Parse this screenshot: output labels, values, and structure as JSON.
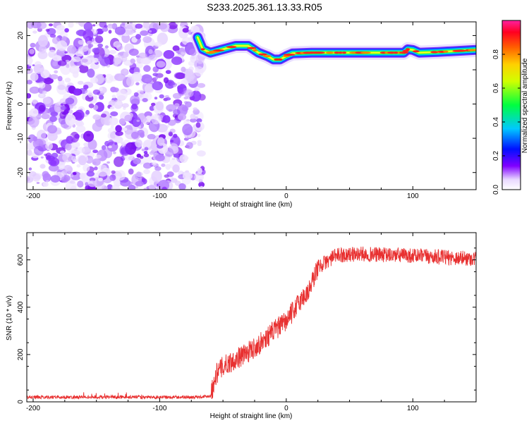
{
  "title": "S233.2025.361.13.33.R05",
  "chart_data": [
    {
      "type": "heatmap",
      "xlabel": "Height of straight line (km)",
      "ylabel": "Frequency (Hz)",
      "xlim": [
        -205,
        150
      ],
      "ylim": [
        -25,
        24
      ],
      "xticks": [
        -200,
        -100,
        0,
        100
      ],
      "yticks": [
        -20,
        -10,
        0,
        10,
        20
      ],
      "colorbar": {
        "label": "Normalized spectral amplitude",
        "range": [
          0,
          1
        ],
        "ticks": [
          0,
          0.2,
          0.4,
          0.6,
          0.8
        ],
        "tick_labels": [
          "0.0",
          "0.2",
          "0.4",
          "0.6",
          "0.8"
        ]
      },
      "noise_region_x": [
        -205,
        -66
      ],
      "signal_trace": {
        "x": [
          -70,
          -66,
          -60,
          -50,
          -40,
          -30,
          -22,
          -15,
          -10,
          -5,
          0,
          5,
          20,
          40,
          60,
          80,
          93,
          96,
          100,
          105,
          120,
          150
        ],
        "frequency": [
          19.5,
          16.0,
          15.0,
          16.0,
          17.0,
          17.0,
          15.0,
          14.0,
          13.0,
          13.0,
          14.0,
          14.8,
          15.0,
          15.0,
          15.0,
          15.0,
          15.0,
          16.0,
          15.8,
          15.0,
          15.2,
          15.8
        ]
      }
    },
    {
      "type": "line",
      "xlabel": "Height of straight line (km)",
      "ylabel": "SNR (10 * v/v)",
      "xlim": [
        -205,
        150
      ],
      "ylim": [
        0,
        715
      ],
      "xticks": [
        -200,
        -100,
        0,
        100
      ],
      "yticks": [
        0,
        200,
        400,
        600
      ],
      "series": [
        {
          "color": "#e83030",
          "x": [
            -205,
            -150,
            -100,
            -70,
            -60,
            -55,
            -50,
            -40,
            -30,
            -20,
            -10,
            0,
            10,
            18,
            25,
            40,
            60,
            80,
            100,
            120,
            150
          ],
          "values": [
            20,
            20,
            20,
            20,
            25,
            120,
            150,
            180,
            210,
            250,
            300,
            340,
            420,
            470,
            570,
            620,
            625,
            620,
            618,
            612,
            605
          ]
        }
      ]
    }
  ]
}
